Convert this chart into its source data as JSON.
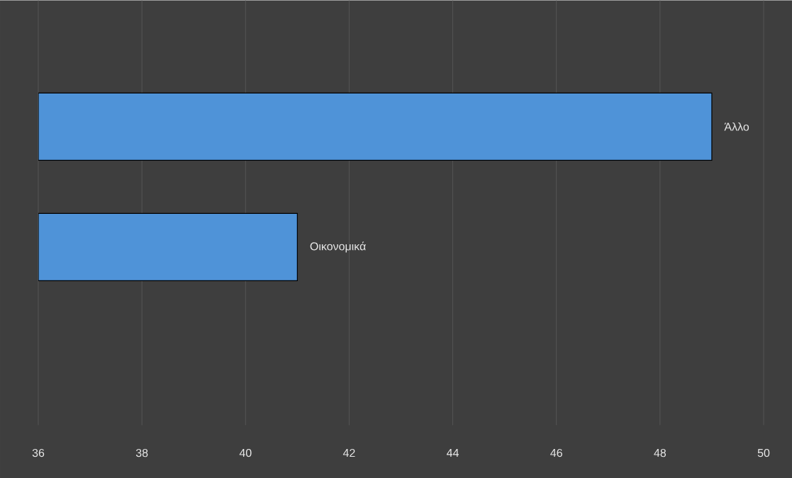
{
  "chart_data": {
    "type": "bar",
    "orientation": "horizontal",
    "categories": [
      "Άλλο",
      "Οικονομικά"
    ],
    "values": [
      49,
      41
    ],
    "color": "#4f93d8",
    "xlim": [
      36,
      50
    ],
    "xticks": [
      36,
      38,
      40,
      42,
      44,
      46,
      48,
      50
    ],
    "grid": "x"
  }
}
